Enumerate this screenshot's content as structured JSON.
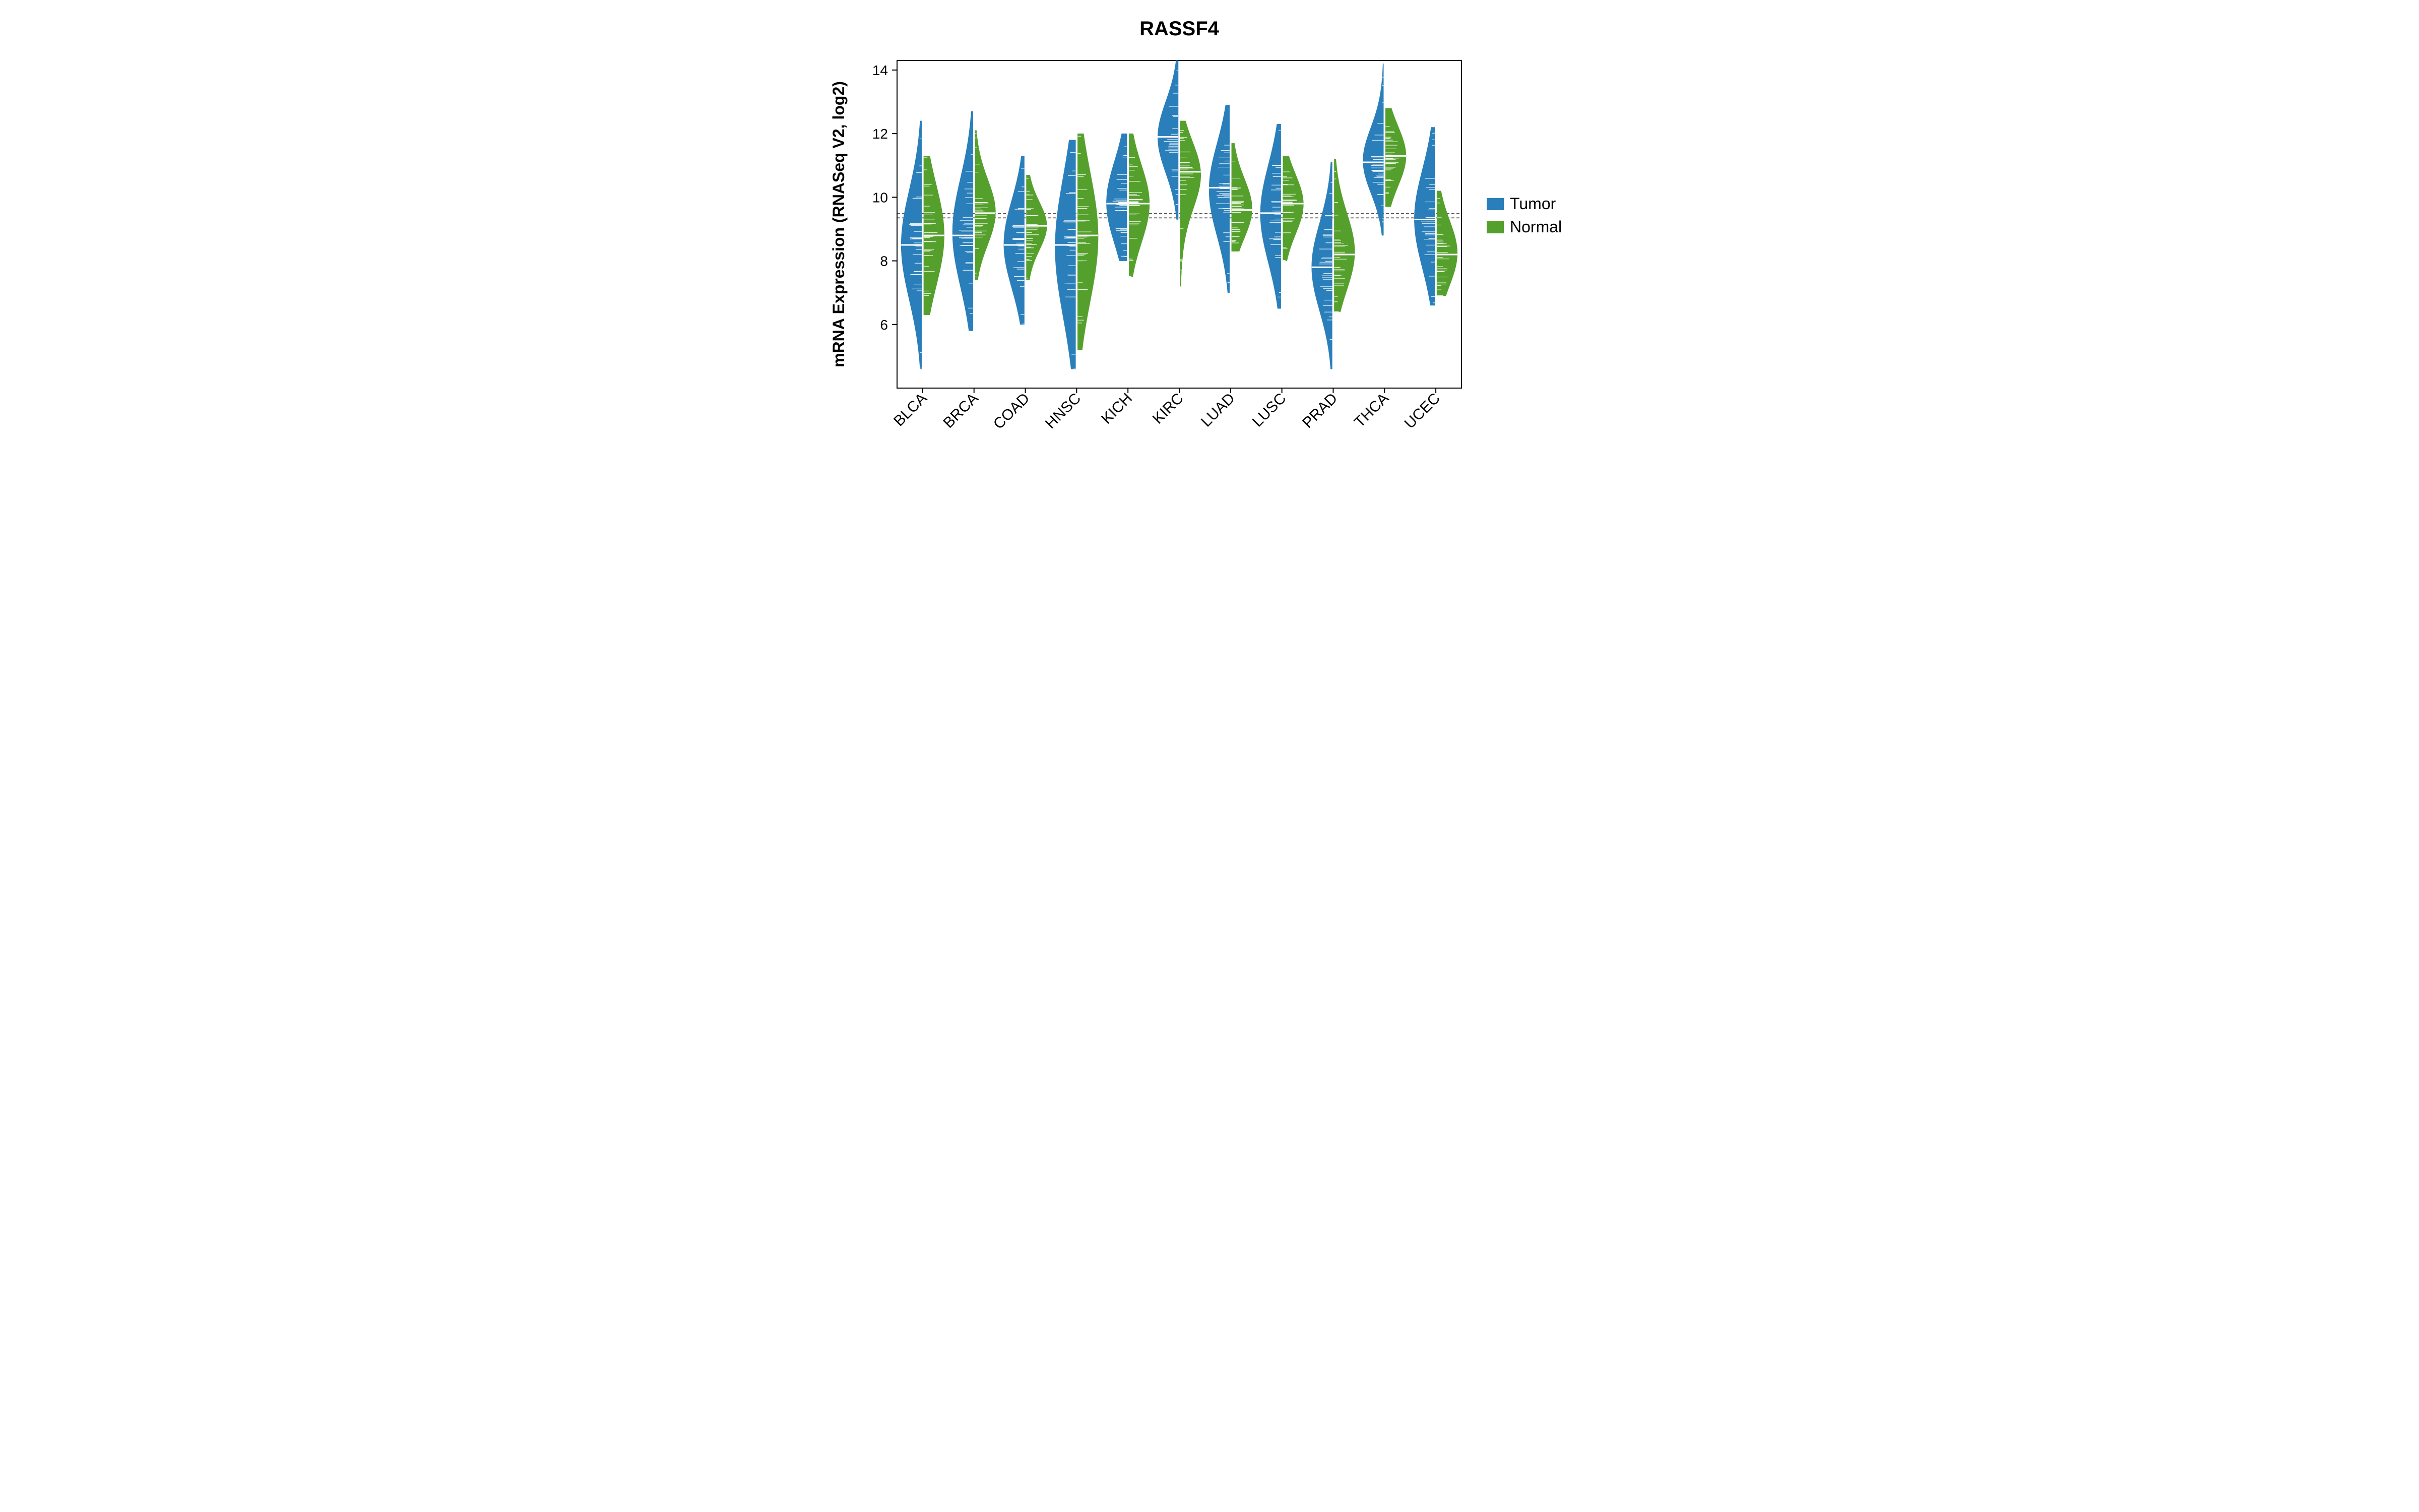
{
  "chart": {
    "type": "beanplot",
    "title": "RASSF4",
    "ylabel": "mRNA Expression (RNASeq V2, log2)",
    "ylim": [
      4.0,
      14.3
    ],
    "yticks": [
      6,
      8,
      10,
      12,
      14
    ],
    "background_color": "#ffffff",
    "border_color": "#000000",
    "reference_lines": [
      9.35,
      9.48
    ],
    "categories": [
      "BLCA",
      "BRCA",
      "COAD",
      "HNSC",
      "KICH",
      "KIRC",
      "LUAD",
      "LUSC",
      "PRAD",
      "THCA",
      "UCEC"
    ],
    "legend": {
      "items": [
        {
          "label": "Tumor",
          "color": "#2a7fba"
        },
        {
          "label": "Normal",
          "color": "#55a02c"
        }
      ]
    },
    "colors": {
      "tumor": "#2a7fba",
      "normal": "#55a02c"
    },
    "series": [
      {
        "name": "BLCA",
        "tumor": {
          "median": 8.5,
          "q1": 7.6,
          "q3": 9.5,
          "min": 4.6,
          "max": 12.4,
          "spread": 1.1
        },
        "normal": {
          "median": 8.8,
          "q1": 8.1,
          "q3": 9.9,
          "min": 6.3,
          "max": 11.3,
          "spread": 0.95
        }
      },
      {
        "name": "BRCA",
        "tumor": {
          "median": 8.8,
          "q1": 8.0,
          "q3": 9.9,
          "min": 5.8,
          "max": 12.7,
          "spread": 1.05
        },
        "normal": {
          "median": 9.5,
          "q1": 9.0,
          "q3": 10.1,
          "min": 7.4,
          "max": 12.1,
          "spread": 0.85
        }
      },
      {
        "name": "COAD",
        "tumor": {
          "median": 8.5,
          "q1": 7.8,
          "q3": 9.3,
          "min": 6.0,
          "max": 11.3,
          "spread": 1.0
        },
        "normal": {
          "median": 9.1,
          "q1": 8.7,
          "q3": 9.5,
          "min": 7.4,
          "max": 10.7,
          "spread": 0.9
        }
      },
      {
        "name": "HNSC",
        "tumor": {
          "median": 8.5,
          "q1": 7.3,
          "q3": 9.8,
          "min": 4.6,
          "max": 11.8,
          "spread": 1.25
        },
        "normal": {
          "median": 8.8,
          "q1": 7.7,
          "q3": 10.0,
          "min": 5.2,
          "max": 12.0,
          "spread": 1.2
        }
      },
      {
        "name": "KICH",
        "tumor": {
          "median": 9.8,
          "q1": 9.2,
          "q3": 10.6,
          "min": 8.0,
          "max": 12.0,
          "spread": 0.9
        },
        "normal": {
          "median": 9.8,
          "q1": 9.2,
          "q3": 10.5,
          "min": 7.5,
          "max": 12.0,
          "spread": 0.95
        }
      },
      {
        "name": "KIRC",
        "tumor": {
          "median": 11.9,
          "q1": 11.3,
          "q3": 12.5,
          "min": 9.3,
          "max": 14.3,
          "spread": 0.85
        },
        "normal": {
          "median": 10.8,
          "q1": 10.2,
          "q3": 11.3,
          "min": 7.2,
          "max": 12.4,
          "spread": 0.8
        }
      },
      {
        "name": "LUAD",
        "tumor": {
          "median": 10.3,
          "q1": 9.5,
          "q3": 11.1,
          "min": 7.0,
          "max": 12.9,
          "spread": 0.95
        },
        "normal": {
          "median": 9.6,
          "q1": 9.2,
          "q3": 10.2,
          "min": 8.3,
          "max": 11.7,
          "spread": 0.8
        }
      },
      {
        "name": "LUSC",
        "tumor": {
          "median": 9.5,
          "q1": 8.6,
          "q3": 10.3,
          "min": 6.5,
          "max": 12.3,
          "spread": 1.0
        },
        "normal": {
          "median": 9.8,
          "q1": 9.3,
          "q3": 10.3,
          "min": 8.0,
          "max": 11.3,
          "spread": 0.8
        }
      },
      {
        "name": "PRAD",
        "tumor": {
          "median": 7.8,
          "q1": 7.1,
          "q3": 8.6,
          "min": 4.6,
          "max": 11.1,
          "spread": 1.0
        },
        "normal": {
          "median": 8.2,
          "q1": 7.6,
          "q3": 8.9,
          "min": 6.4,
          "max": 11.2,
          "spread": 0.9
        }
      },
      {
        "name": "THCA",
        "tumor": {
          "median": 11.1,
          "q1": 10.6,
          "q3": 11.7,
          "min": 8.8,
          "max": 14.2,
          "spread": 0.8
        },
        "normal": {
          "median": 11.3,
          "q1": 10.8,
          "q3": 11.8,
          "min": 9.7,
          "max": 12.8,
          "spread": 0.75
        }
      },
      {
        "name": "UCEC",
        "tumor": {
          "median": 9.3,
          "q1": 8.3,
          "q3": 10.0,
          "min": 6.6,
          "max": 12.2,
          "spread": 1.0
        },
        "normal": {
          "median": 8.2,
          "q1": 7.7,
          "q3": 8.8,
          "min": 6.9,
          "max": 10.2,
          "spread": 0.85
        }
      }
    ]
  }
}
